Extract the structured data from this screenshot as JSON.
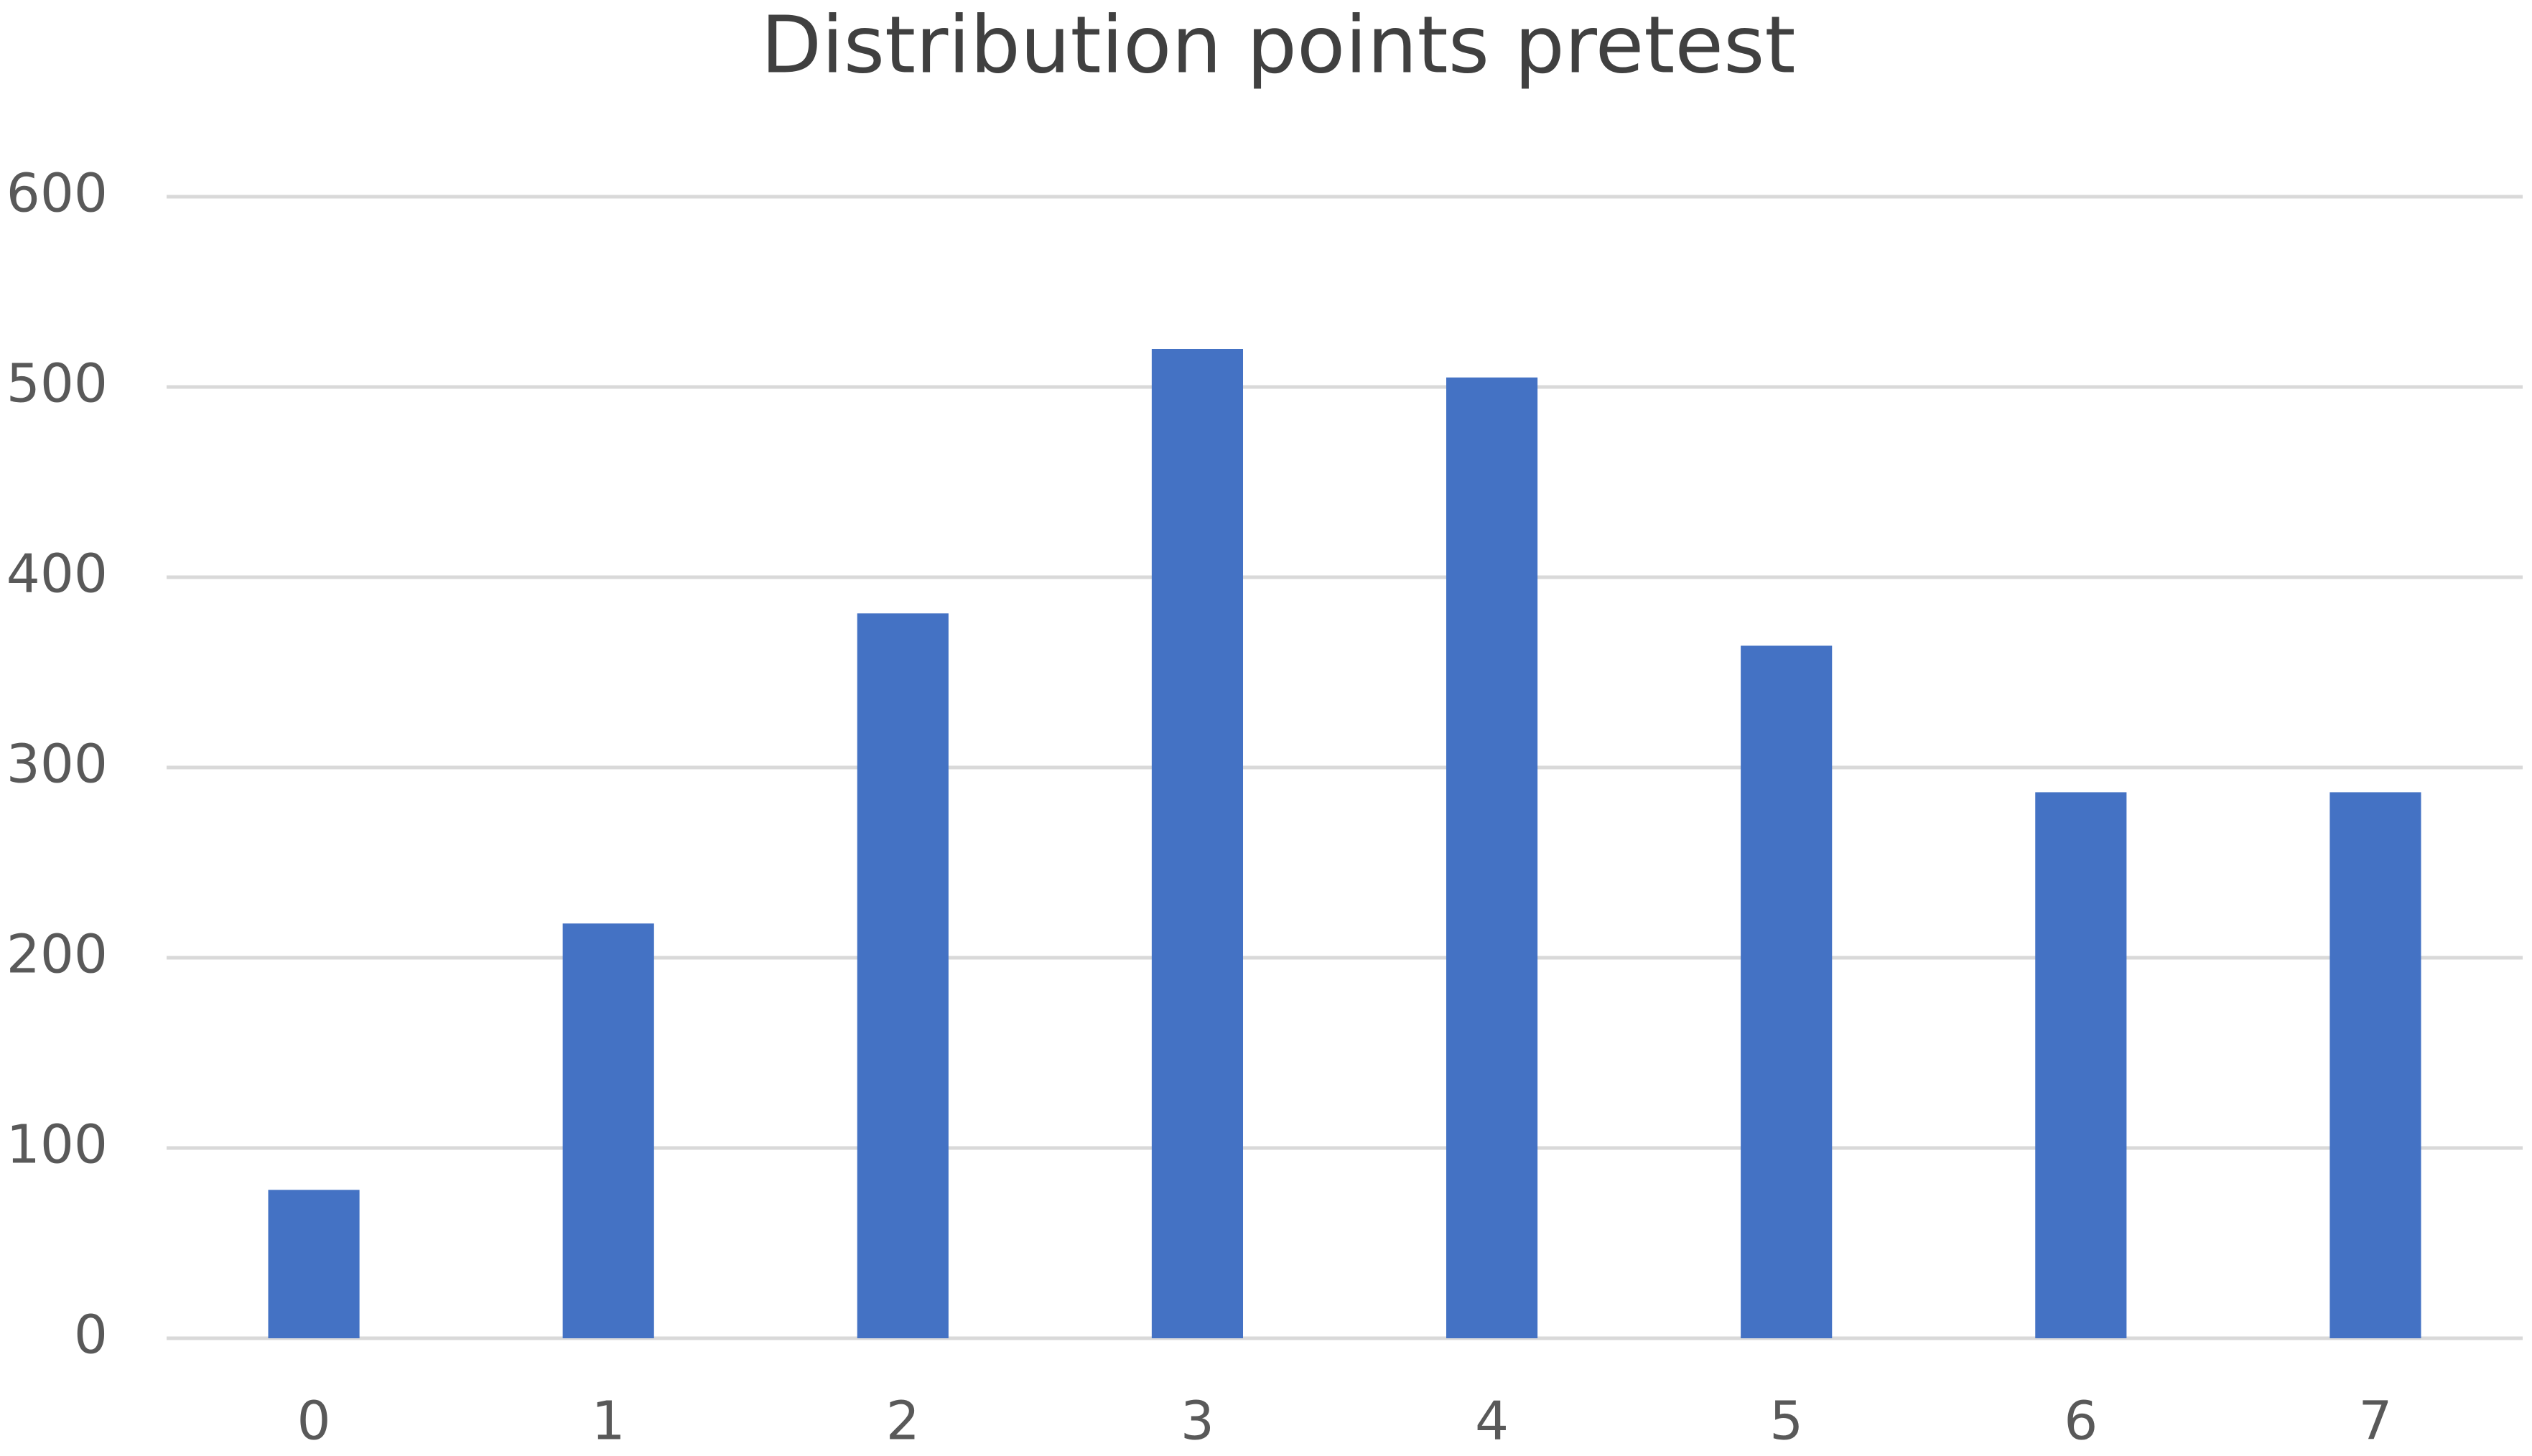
{
  "chart_data": {
    "type": "bar",
    "title": "Distribution points pretest",
    "categories": [
      "0",
      "1",
      "2",
      "3",
      "4",
      "5",
      "6",
      "7"
    ],
    "values": [
      78,
      218,
      381,
      520,
      505,
      364,
      287,
      287
    ],
    "color": "#4472c4",
    "ylim": [
      0,
      600
    ],
    "yticks": [
      0,
      100,
      200,
      300,
      400,
      500,
      600
    ],
    "grid": true
  }
}
